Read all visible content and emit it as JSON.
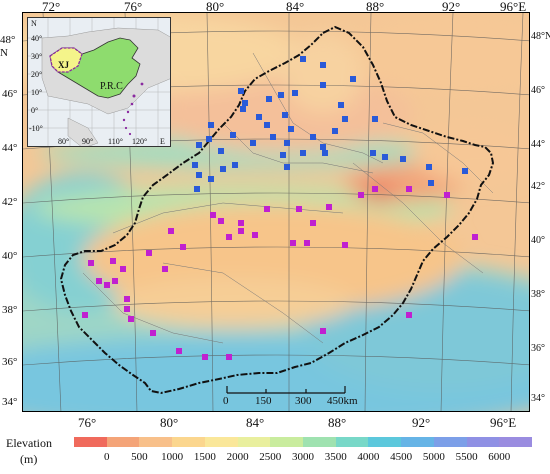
{
  "map": {
    "lon_labels_top": [
      "72°",
      "76°",
      "80°",
      "84°",
      "88°",
      "92°",
      "96°E"
    ],
    "lon_labels_bottom": [
      "76°",
      "80°",
      "84°",
      "88°",
      "92°",
      "96°E"
    ],
    "lat_labels_left": [
      "48°N",
      "46°",
      "44°",
      "42°",
      "40°",
      "38°",
      "36°",
      "34°"
    ],
    "lat_labels_right": [
      "42°",
      "40°",
      "38°",
      "36°",
      "34°"
    ],
    "lat_label_right_top": "48°N",
    "lat_label_right_second": "46°",
    "lat_label_right_third": "44°",
    "colors": {
      "border": "#111111",
      "blue_station": "#2a5ad8",
      "magenta_station": "#c020d0"
    }
  },
  "inset": {
    "region_label": "XJ",
    "country_label": "P.R.C",
    "lat_labels": [
      "N",
      "40°",
      "30°",
      "20°",
      "10°",
      "0°",
      "-10°"
    ],
    "lon_labels": [
      "80°",
      "90°",
      "110°",
      "120°",
      "E"
    ]
  },
  "scale_bar": {
    "labels": [
      "0",
      "150",
      "300",
      "450km"
    ],
    "km_values": [
      0,
      150,
      300,
      450
    ]
  },
  "legend": {
    "title_line1": "Elevation",
    "title_line2": "(m)",
    "values": [
      "0",
      "500",
      "1000",
      "1500",
      "2000",
      "2500",
      "3000",
      "3500",
      "4000",
      "4500",
      "5000",
      "5500",
      "6000"
    ],
    "colors": [
      "#f06a5c",
      "#f4a478",
      "#f8c08a",
      "#fbd68e",
      "#fae79a",
      "#e9ef9e",
      "#c9ec9e",
      "#9fe2b0",
      "#78d8c8",
      "#5cc8dc",
      "#66b4e6",
      "#7c9fe8",
      "#8f90e4",
      "#9a8ce0"
    ]
  }
}
